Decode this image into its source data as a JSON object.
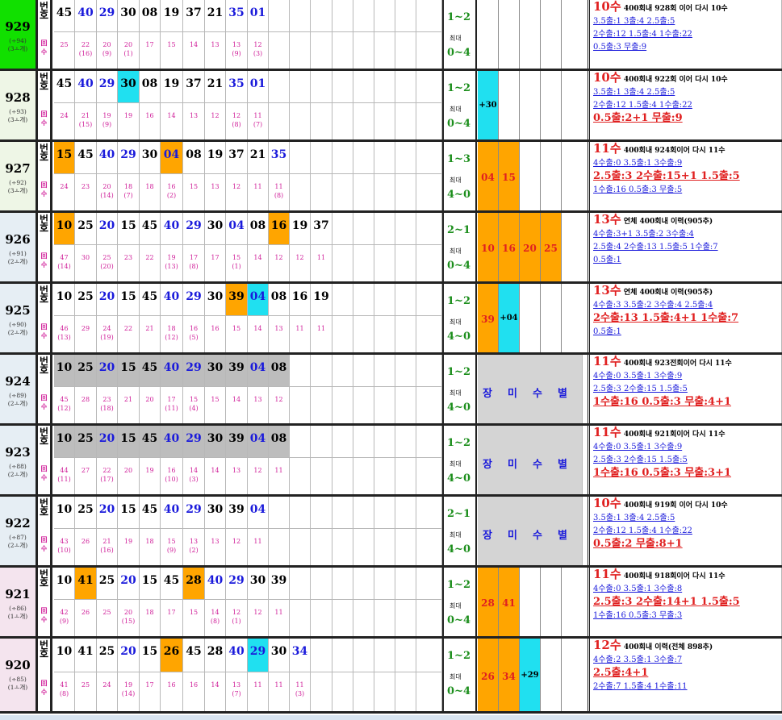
{
  "rows": [
    {
      "id": "929",
      "sub1": "(÷94)",
      "sub2": "(3ㅗ개)",
      "label_top": "번호",
      "label_bot": "回수",
      "nums": [
        "45",
        "40",
        "29",
        "30",
        "08",
        "19",
        "37",
        "21",
        "35",
        "01"
      ],
      "counts": [
        "25",
        "22\n(16)",
        "20\n(9)",
        "20\n(1)",
        "17",
        "15",
        "14",
        "13",
        "13\n(9)",
        "12\n(3)"
      ],
      "s1": "1~2",
      "s2": "최대",
      "s3": "0~4",
      "ex": [],
      "h": "10수",
      "hs": "400회내 928회 이어 다시 10수",
      "lines": [
        "3.5출:1   3출:4   2.5출:5",
        "2수출:12  1.5출:4  1수출:22",
        "0.5출:3   무출:9"
      ]
    },
    {
      "id": "928",
      "sub1": "(÷93)",
      "sub2": "(3ㅗ개)",
      "label_top": "번호",
      "label_bot": "回수",
      "nums": [
        "45",
        "40",
        "29",
        "30",
        "08",
        "19",
        "37",
        "21",
        "35",
        "01"
      ],
      "counts": [
        "24",
        "21\n(15)",
        "19\n(9)",
        "19",
        "16",
        "14",
        "13",
        "12",
        "12\n(8)",
        "11\n(7)"
      ],
      "s1": "1~2",
      "s2": "최대",
      "s3": "0~4",
      "ex": [
        "+30"
      ],
      "h": "10수",
      "hs": "400회내 922회 이어 다시 10수",
      "lines": [
        "3.5출:1   3출:4   2.5출:5",
        "2수출:12  1.5출:4  1수출:22",
        "0.5출:2+1   무출:9"
      ]
    },
    {
      "id": "927",
      "sub1": "(÷92)",
      "sub2": "(3ㅗ개)",
      "label_top": "번호",
      "label_bot": "回수",
      "nums": [
        "15",
        "45",
        "40",
        "29",
        "30",
        "04",
        "08",
        "19",
        "37",
        "21",
        "35"
      ],
      "counts": [
        "24",
        "23",
        "20\n(14)",
        "18\n(7)",
        "18",
        "16\n(2)",
        "15",
        "13",
        "12",
        "11",
        "11\n(8)"
      ],
      "s1": "1~3",
      "s2": "최대",
      "s3": "4~0",
      "ex": [
        "04",
        "15"
      ],
      "h": "11수",
      "hs": "400회내 924회이어 다시 11수",
      "lines": [
        "4수출:0   3.5출:1   3수출:9",
        "2.5출:3   2수출:15+1  1.5출:5",
        "1수출:16  0.5출:3    무출:5"
      ]
    },
    {
      "id": "926",
      "sub1": "(÷91)",
      "sub2": "(2ㅗ개)",
      "label_top": "번호",
      "label_bot": "回수",
      "nums": [
        "10",
        "25",
        "20",
        "15",
        "45",
        "40",
        "29",
        "30",
        "04",
        "08",
        "16",
        "19",
        "37"
      ],
      "counts": [
        "47\n(14)",
        "30",
        "25\n(20)",
        "23",
        "22",
        "19\n(13)",
        "17\n(8)",
        "17",
        "15\n(1)",
        "14",
        "12",
        "12",
        "11"
      ],
      "s1": "2~1",
      "s2": "최대",
      "s3": "0~4",
      "ex": [
        "10",
        "16",
        "20",
        "25"
      ],
      "h": "13수",
      "hs": "연체 400회내 이력(905추)",
      "lines": [
        "4수출:3+1  3.5출:2  3수출:4",
        "2.5출:4  2수출:13  1.5출:5  1수출:7",
        "0.5출:1"
      ]
    },
    {
      "id": "925",
      "sub1": "(÷90)",
      "sub2": "(2ㅗ개)",
      "label_top": "번호",
      "label_bot": "回수",
      "nums": [
        "10",
        "25",
        "20",
        "15",
        "45",
        "40",
        "29",
        "30",
        "39",
        "04",
        "08",
        "16",
        "19"
      ],
      "counts": [
        "46\n(13)",
        "29",
        "24\n(19)",
        "22",
        "21",
        "18\n(12)",
        "16\n(5)",
        "16",
        "15",
        "14",
        "13",
        "11",
        "11"
      ],
      "s1": "1~2",
      "s2": "최대",
      "s3": "4~0",
      "ex": [
        "39",
        "+04"
      ],
      "h": "13수",
      "hs": "연체 400회내 이력(905추)",
      "lines": [
        "4수출:3  3.5출:2  3수출:4  2.5출:4",
        "2수출:13  1.5출:4+1  1수출:7",
        "0.5출:1"
      ]
    },
    {
      "id": "924",
      "sub1": "(÷89)",
      "sub2": "(2ㅗ개)",
      "label_top": "번호",
      "label_bot": "回수",
      "nums": [
        "10",
        "25",
        "20",
        "15",
        "45",
        "40",
        "29",
        "30",
        "39",
        "04",
        "08"
      ],
      "counts": [
        "45\n(12)",
        "28",
        "23\n(18)",
        "21",
        "20",
        "17\n(11)",
        "15\n(4)",
        "15",
        "14",
        "13",
        "12"
      ],
      "s1": "1~2",
      "s2": "최대",
      "s3": "4~0",
      "jm": [
        "장",
        "미",
        "수",
        "별"
      ],
      "h": "11수",
      "hs": "400회내 923전회이어 다시 11수",
      "lines": [
        "4수출:0   3.5출:1   3수출:9",
        "2.5출:3   2수출:15   1.5출:5",
        "1수출:16  0.5출:3    무출:4+1"
      ]
    },
    {
      "id": "923",
      "sub1": "(÷88)",
      "sub2": "(2ㅗ개)",
      "label_top": "번호",
      "label_bot": "回수",
      "nums": [
        "10",
        "25",
        "20",
        "15",
        "45",
        "40",
        "29",
        "30",
        "39",
        "04",
        "08"
      ],
      "counts": [
        "44\n(11)",
        "27",
        "22\n(17)",
        "20",
        "19",
        "16\n(10)",
        "14\n(3)",
        "14",
        "13",
        "12",
        "11"
      ],
      "s1": "1~2",
      "s2": "최대",
      "s3": "4~0",
      "jm": [
        "장",
        "미",
        "수",
        "별"
      ],
      "h": "11수",
      "hs": "400회내 921회이어 다시 11수",
      "lines": [
        "4수출:0   3.5출:1   3수출:9",
        "2.5출:3   2수출:15   1.5출:5",
        "1수출:16  0.5출:3    무출:3+1"
      ]
    },
    {
      "id": "922",
      "sub1": "(÷87)",
      "sub2": "(2ㅗ개)",
      "label_top": "번호",
      "label_bot": "回수",
      "nums": [
        "10",
        "25",
        "20",
        "15",
        "45",
        "40",
        "29",
        "30",
        "39",
        "04"
      ],
      "counts": [
        "43\n(10)",
        "26",
        "21\n(16)",
        "19",
        "18",
        "15\n(9)",
        "13\n(2)",
        "13",
        "12",
        "11"
      ],
      "s1": "2~1",
      "s2": "최대",
      "s3": "4~0",
      "jm": [
        "장",
        "미",
        "수",
        "별"
      ],
      "h": "10수",
      "hs": "400회내 919회 이어 다시 10수",
      "lines": [
        "3.5출:1   3출:4   2.5출:5",
        "2수출:12  1.5출:4  1수출:22",
        "0.5출:2   무출:8+1"
      ]
    },
    {
      "id": "921",
      "sub1": "(÷86)",
      "sub2": "(1ㅗ개)",
      "label_top": "번호",
      "label_bot": "回수",
      "nums": [
        "10",
        "41",
        "25",
        "20",
        "15",
        "45",
        "28",
        "40",
        "29",
        "30",
        "39"
      ],
      "counts": [
        "42\n(9)",
        "26",
        "25",
        "20\n(15)",
        "18",
        "17",
        "15",
        "14\n(8)",
        "12\n(1)",
        "12",
        "11"
      ],
      "s1": "1~2",
      "s2": "최대",
      "s3": "0~4",
      "ex": [
        "28",
        "41"
      ],
      "h": "11수",
      "hs": "400회내 918회이어 다시 11수",
      "lines": [
        "4수출:0   3.5출:1   3수출:8",
        "2.5출:3   2수출:14+1  1.5출:5",
        "1수출:16  0.5출:3    무출:3"
      ]
    },
    {
      "id": "920",
      "sub1": "(÷85)",
      "sub2": "(1ㅗ개)",
      "label_top": "번호",
      "label_bot": "回수",
      "nums": [
        "10",
        "41",
        "25",
        "20",
        "15",
        "26",
        "45",
        "28",
        "40",
        "29",
        "30",
        "34"
      ],
      "counts": [
        "41\n(8)",
        "25",
        "24",
        "19\n(14)",
        "17",
        "16",
        "16",
        "14",
        "13\n(7)",
        "11",
        "11",
        "11\n(3)"
      ],
      "s1": "1~2",
      "s2": "최대",
      "s3": "0~4",
      "ex": [
        "26",
        "34",
        "+29"
      ],
      "h": "12수",
      "hs": "400회내 이력(전체 898추)",
      "lines": [
        "4수출:2  3.5출:1  3수출:7",
        "2.5출:4+1",
        "2수출:7  1.5출:4  1수출:11"
      ]
    }
  ],
  "colors": {
    "blue": "#1a1adb",
    "orange": "#ffa500",
    "cyan": "#20e0f0",
    "gray": "#bdbdbd",
    "magenta": "#d0209a",
    "green": "#1c8e1c",
    "red": "#e02020"
  }
}
